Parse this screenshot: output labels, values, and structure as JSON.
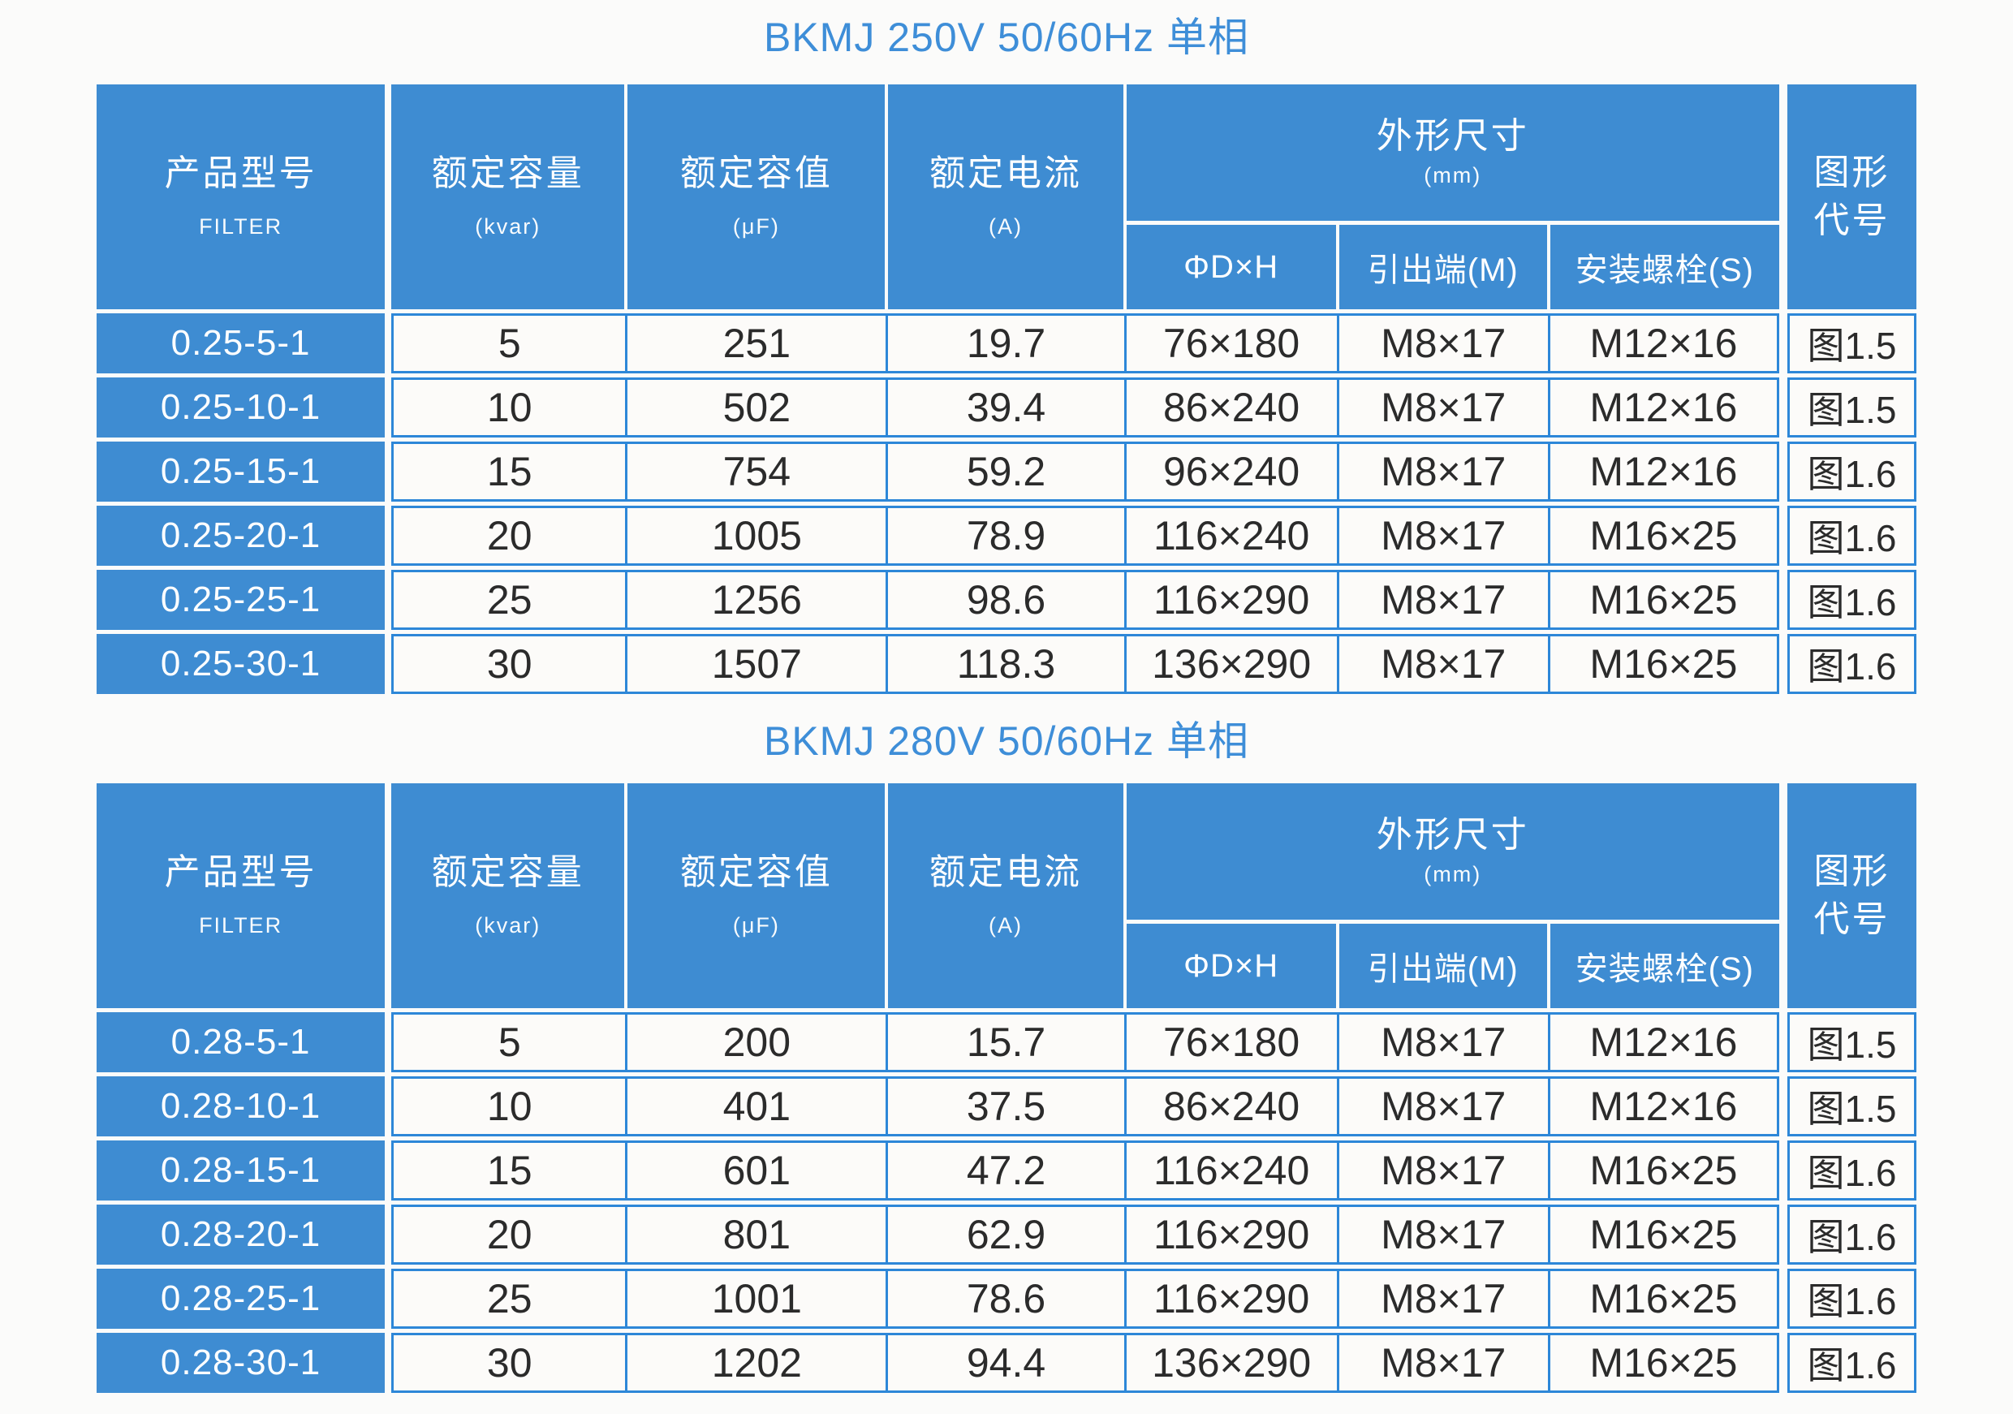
{
  "colors": {
    "header_fill": "#3e8cd2",
    "border_blue": "#2d87d8",
    "title_blue": "#3e8ed8",
    "page_background": "#fbfbfa",
    "text_dark": "#2b2b2b"
  },
  "tables": [
    {
      "title": "BKMJ 250V 50/60Hz 单相",
      "header": {
        "model_main": "产品型号",
        "model_sub": "FILTER",
        "capacity_main": "额定容量",
        "capacity_sub": "(kvar)",
        "capacitance_main": "额定容值",
        "capacitance_sub": "(μF)",
        "current_main": "额定电流",
        "current_sub": "(A)",
        "dims_main": "外形尺寸",
        "dims_sub": "(mm)",
        "dim_dxh": "ΦD×H",
        "dim_lead": "引出端(M)",
        "dim_bolt": "安装螺栓(S)",
        "figure_line1": "图形",
        "figure_line2": "代号"
      },
      "rows": [
        [
          "0.25-5-1",
          "5",
          "251",
          "19.7",
          "76×180",
          "M8×17",
          "M12×16",
          "图1.5"
        ],
        [
          "0.25-10-1",
          "10",
          "502",
          "39.4",
          "86×240",
          "M8×17",
          "M12×16",
          "图1.5"
        ],
        [
          "0.25-15-1",
          "15",
          "754",
          "59.2",
          "96×240",
          "M8×17",
          "M12×16",
          "图1.6"
        ],
        [
          "0.25-20-1",
          "20",
          "1005",
          "78.9",
          "116×240",
          "M8×17",
          "M16×25",
          "图1.6"
        ],
        [
          "0.25-25-1",
          "25",
          "1256",
          "98.6",
          "116×290",
          "M8×17",
          "M16×25",
          "图1.6"
        ],
        [
          "0.25-30-1",
          "30",
          "1507",
          "118.3",
          "136×290",
          "M8×17",
          "M16×25",
          "图1.6"
        ]
      ]
    },
    {
      "title": "BKMJ 280V 50/60Hz 单相",
      "header": {
        "model_main": "产品型号",
        "model_sub": "FILTER",
        "capacity_main": "额定容量",
        "capacity_sub": "(kvar)",
        "capacitance_main": "额定容值",
        "capacitance_sub": "(μF)",
        "current_main": "额定电流",
        "current_sub": "(A)",
        "dims_main": "外形尺寸",
        "dims_sub": "(mm)",
        "dim_dxh": "ΦD×H",
        "dim_lead": "引出端(M)",
        "dim_bolt": "安装螺栓(S)",
        "figure_line1": "图形",
        "figure_line2": "代号"
      },
      "rows": [
        [
          "0.28-5-1",
          "5",
          "200",
          "15.7",
          "76×180",
          "M8×17",
          "M12×16",
          "图1.5"
        ],
        [
          "0.28-10-1",
          "10",
          "401",
          "37.5",
          "86×240",
          "M8×17",
          "M12×16",
          "图1.5"
        ],
        [
          "0.28-15-1",
          "15",
          "601",
          "47.2",
          "116×240",
          "M8×17",
          "M16×25",
          "图1.6"
        ],
        [
          "0.28-20-1",
          "20",
          "801",
          "62.9",
          "116×290",
          "M8×17",
          "M16×25",
          "图1.6"
        ],
        [
          "0.28-25-1",
          "25",
          "1001",
          "78.6",
          "116×290",
          "M8×17",
          "M16×25",
          "图1.6"
        ],
        [
          "0.28-30-1",
          "30",
          "1202",
          "94.4",
          "136×290",
          "M8×17",
          "M16×25",
          "图1.6"
        ]
      ]
    }
  ]
}
